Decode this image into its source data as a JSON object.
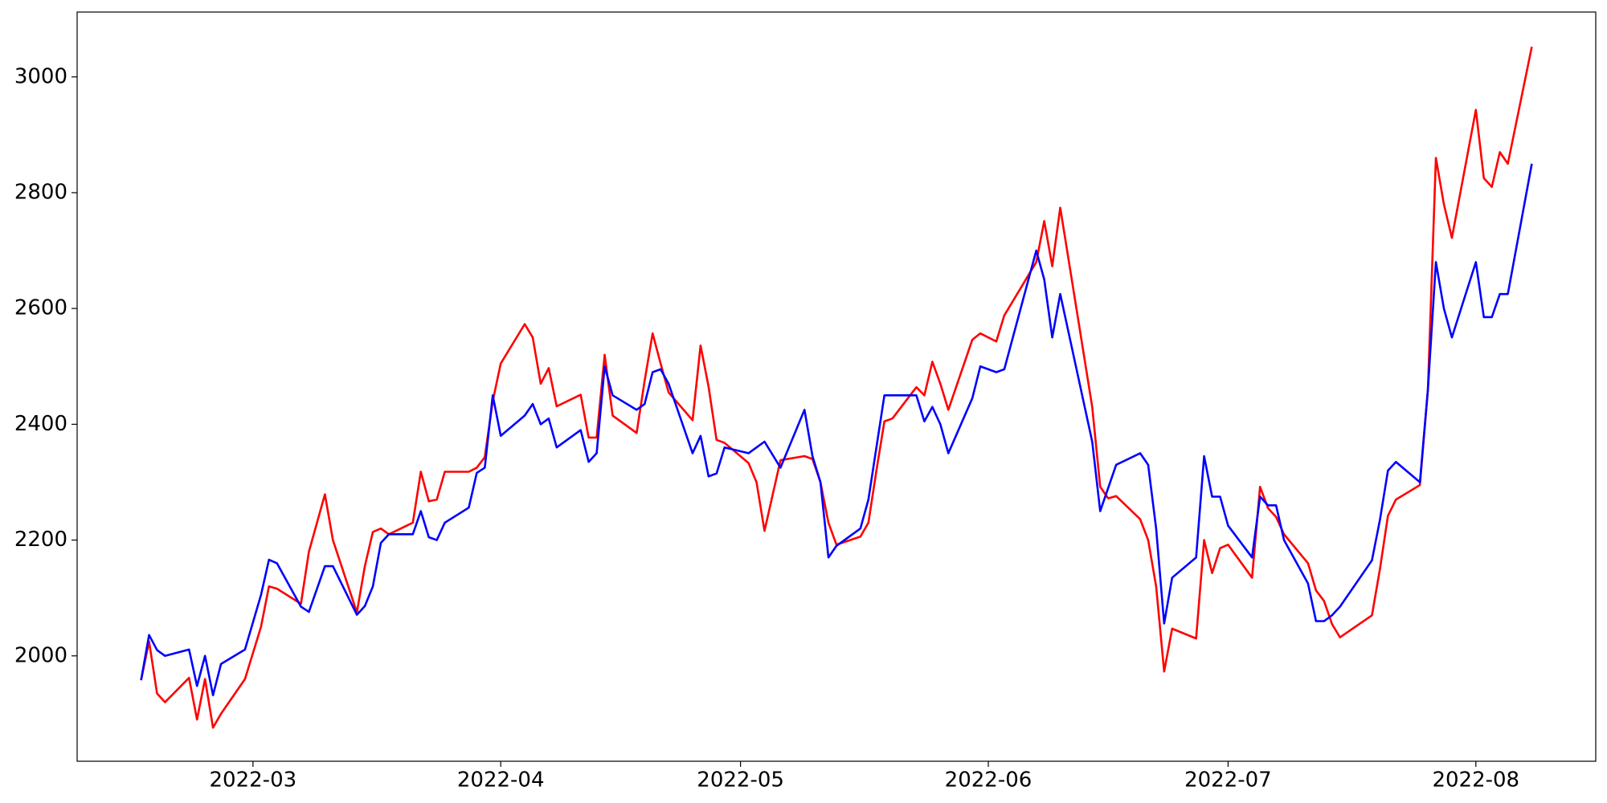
{
  "chart_data": {
    "type": "line",
    "x": [
      19038,
      19039,
      19040,
      19041,
      19044,
      19045,
      19046,
      19047,
      19048,
      19051,
      19053,
      19054,
      19055,
      19058,
      19059,
      19061,
      19062,
      19065,
      19066,
      19067,
      19068,
      19069,
      19072,
      19073,
      19074,
      19075,
      19076,
      19079,
      19080,
      19081,
      19082,
      19083,
      19086,
      19087,
      19088,
      19089,
      19090,
      19093,
      19094,
      19095,
      19096,
      19097,
      19100,
      19101,
      19102,
      19103,
      19104,
      19107,
      19108,
      19109,
      19110,
      19111,
      19114,
      19115,
      19116,
      19118,
      19121,
      19122,
      19123,
      19124,
      19125,
      19128,
      19129,
      19130,
      19131,
      19132,
      19135,
      19136,
      19137,
      19138,
      19139,
      19142,
      19143,
      19145,
      19146,
      19150,
      19151,
      19152,
      19153,
      19157,
      19158,
      19159,
      19160,
      19163,
      19164,
      19165,
      19166,
      19167,
      19170,
      19171,
      19172,
      19173,
      19174,
      19177,
      19178,
      19179,
      19180,
      19181,
      19184,
      19185,
      19186,
      19187,
      19188,
      19192,
      19193,
      19194,
      19195,
      19198,
      19199,
      19200,
      19201,
      19202,
      19205,
      19206,
      19207,
      19208,
      19209,
      19212
    ],
    "series": [
      {
        "color": "#ff0000",
        "values": [
          1958,
          2025,
          1935,
          1920,
          1962,
          1890,
          1960,
          1876,
          1900,
          1960,
          2050,
          2120,
          2116,
          2090,
          2180,
          2279,
          2200,
          2075,
          2155,
          2214,
          2220,
          2210,
          2230,
          2318,
          2267,
          2270,
          2318,
          2318,
          2325,
          2343,
          2440,
          2505,
          2573,
          2550,
          2470,
          2497,
          2431,
          2451,
          2377,
          2377,
          2520,
          2415,
          2385,
          2475,
          2557,
          2505,
          2455,
          2407,
          2536,
          2465,
          2373,
          2368,
          2333,
          2300,
          2216,
          2338,
          2345,
          2340,
          2300,
          2230,
          2192,
          2206,
          2230,
          2320,
          2405,
          2410,
          2464,
          2450,
          2508,
          2470,
          2425,
          2546,
          2557,
          2543,
          2588,
          2680,
          2751,
          2673,
          2774,
          2430,
          2292,
          2272,
          2276,
          2236,
          2200,
          2120,
          1973,
          2047,
          2030,
          2200,
          2143,
          2186,
          2192,
          2135,
          2292,
          2255,
          2240,
          2210,
          2160,
          2113,
          2095,
          2055,
          2032,
          2070,
          2150,
          2242,
          2270,
          2295,
          2460,
          2860,
          2780,
          2722,
          2943,
          2825,
          2810,
          2870,
          2850,
          3052
        ]
      },
      {
        "color": "#0000ff",
        "values": [
          1958,
          2036,
          2010,
          2000,
          2011,
          1948,
          2000,
          1932,
          1986,
          2011,
          2105,
          2166,
          2160,
          2085,
          2076,
          2155,
          2155,
          2071,
          2086,
          2120,
          2195,
          2210,
          2210,
          2250,
          2205,
          2200,
          2230,
          2256,
          2316,
          2325,
          2450,
          2380,
          2415,
          2435,
          2400,
          2410,
          2360,
          2390,
          2335,
          2350,
          2500,
          2450,
          2425,
          2435,
          2490,
          2495,
          2470,
          2350,
          2380,
          2310,
          2315,
          2360,
          2350,
          2360,
          2370,
          2325,
          2425,
          2345,
          2300,
          2170,
          2190,
          2220,
          2270,
          2360,
          2450,
          2450,
          2450,
          2405,
          2430,
          2400,
          2350,
          2445,
          2500,
          2490,
          2495,
          2700,
          2650,
          2550,
          2625,
          2370,
          2250,
          2290,
          2330,
          2350,
          2330,
          2220,
          2056,
          2135,
          2170,
          2345,
          2275,
          2275,
          2225,
          2170,
          2275,
          2260,
          2260,
          2200,
          2125,
          2060,
          2060,
          2070,
          2085,
          2165,
          2235,
          2320,
          2335,
          2300,
          2460,
          2680,
          2600,
          2550,
          2680,
          2585,
          2585,
          2625,
          2625,
          2850
        ]
      }
    ],
    "xlim": [
      19030,
      19220
    ],
    "xticks": [
      {
        "value": 19052,
        "label": "2022-03"
      },
      {
        "value": 19083,
        "label": "2022-04"
      },
      {
        "value": 19113,
        "label": "2022-05"
      },
      {
        "value": 19144,
        "label": "2022-06"
      },
      {
        "value": 19174,
        "label": "2022-07"
      },
      {
        "value": 19205,
        "label": "2022-08"
      }
    ],
    "ylim": [
      1818,
      3112
    ],
    "yticks": [
      2000,
      2200,
      2400,
      2600,
      2800,
      3000
    ],
    "grid": false
  }
}
